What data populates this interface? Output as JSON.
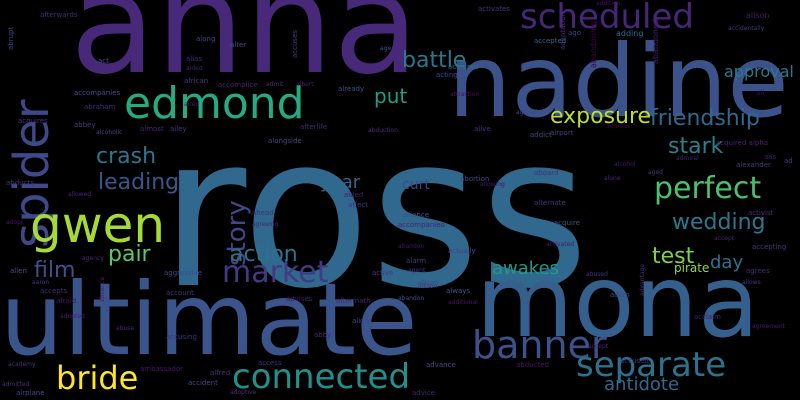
{
  "words": [
    {
      "text": "ross",
      "color": "#30688e"
    },
    {
      "text": "anna",
      "color": "#482979"
    },
    {
      "text": "nadine",
      "color": "#3b528b"
    },
    {
      "text": "mona",
      "color": "#35608d"
    },
    {
      "text": "ultimate",
      "color": "#3a548c"
    },
    {
      "text": "edmond",
      "color": "#25ab82"
    },
    {
      "text": "spider",
      "color": "#3e4989"
    },
    {
      "text": "gwen",
      "color": "#a5db36"
    },
    {
      "text": "scheduled",
      "color": "#482677"
    },
    {
      "text": "connected",
      "color": "#21918c"
    },
    {
      "text": "banner",
      "color": "#3b528b"
    },
    {
      "text": "separate",
      "color": "#2c728e"
    },
    {
      "text": "bride",
      "color": "#fde725"
    },
    {
      "text": "perfect",
      "color": "#4ac16d"
    },
    {
      "text": "market",
      "color": "#443983"
    },
    {
      "text": "friendship",
      "color": "#31688e"
    },
    {
      "text": "exposure",
      "color": "#bddf26"
    },
    {
      "text": "crash",
      "color": "#2a788e"
    },
    {
      "text": "wedding",
      "color": "#2a788e"
    },
    {
      "text": "story",
      "color": "#3e4989"
    },
    {
      "text": "action",
      "color": "#2c728e"
    },
    {
      "text": "leading",
      "color": "#39568c"
    },
    {
      "text": "battle",
      "color": "#2a788e"
    },
    {
      "text": "test",
      "color": "#7ad151"
    },
    {
      "text": "pair",
      "color": "#5ec962"
    },
    {
      "text": "stark",
      "color": "#26828e"
    },
    {
      "text": "film",
      "color": "#3b528b"
    },
    {
      "text": "antidote",
      "color": "#31688e"
    },
    {
      "text": "awakes",
      "color": "#1f9a8a"
    },
    {
      "text": "approval",
      "color": "#2a788e"
    },
    {
      "text": "year",
      "color": "#31688e"
    },
    {
      "text": "put",
      "color": "#1f9e89"
    },
    {
      "text": "day",
      "color": "#2c728e"
    },
    {
      "text": "curt",
      "color": "#3e4a89"
    },
    {
      "text": "pirate",
      "color": "#8fd744"
    },
    {
      "text": "ad",
      "color": "#433e85"
    },
    {
      "text": "addition",
      "color": "#471063"
    },
    {
      "text": "abandoning",
      "color": "#440154"
    },
    {
      "text": "abandoned",
      "color": "#481f70"
    },
    {
      "text": "afterwards",
      "color": "#482475"
    },
    {
      "text": "activates",
      "color": "#46327e"
    },
    {
      "text": "adding",
      "color": "#31688e"
    },
    {
      "text": "adaptation",
      "color": "#482878"
    },
    {
      "text": "alison",
      "color": "#481668"
    },
    {
      "text": "accidentally",
      "color": "#46337f"
    },
    {
      "text": "abrupt",
      "color": "#3f4788"
    },
    {
      "text": "alter",
      "color": "#3b528b"
    },
    {
      "text": "accuses",
      "color": "#433d84"
    },
    {
      "text": "along",
      "color": "#424086"
    },
    {
      "text": "age",
      "color": "#3b528b"
    },
    {
      "text": "ago",
      "color": "#404588"
    },
    {
      "text": "accepted",
      "color": "#34618d"
    },
    {
      "text": "alias",
      "color": "#482576"
    },
    {
      "text": "aided",
      "color": "#482173"
    },
    {
      "text": "act",
      "color": "#3d4e8a"
    },
    {
      "text": "african",
      "color": "#453781"
    },
    {
      "text": "accomplice",
      "color": "#482374"
    },
    {
      "text": "admit",
      "color": "#46327e"
    },
    {
      "text": "albert",
      "color": "#481b6d"
    },
    {
      "text": "acting",
      "color": "#3e4989"
    },
    {
      "text": "acquired",
      "color": "#31688e"
    },
    {
      "text": "accompanies",
      "color": "#3b528b"
    },
    {
      "text": "abraham",
      "color": "#482878"
    },
    {
      "text": "already",
      "color": "#3a548c"
    },
    {
      "text": "attraction",
      "color": "#471365"
    },
    {
      "text": "agreed",
      "color": "#3e4a89"
    },
    {
      "text": "alive",
      "color": "#46307e"
    },
    {
      "text": "ali",
      "color": "#450559"
    },
    {
      "text": "aired",
      "color": "#481a6c"
    },
    {
      "text": "almost",
      "color": "#482677"
    },
    {
      "text": "abbey",
      "color": "#443983"
    },
    {
      "text": "alcoholic",
      "color": "#414487"
    },
    {
      "text": "ailey",
      "color": "#46327e"
    },
    {
      "text": "afterlife",
      "color": "#482475"
    },
    {
      "text": "abduction",
      "color": "#472f7d"
    },
    {
      "text": "addict",
      "color": "#3f4889"
    },
    {
      "text": "address",
      "color": "#440154"
    },
    {
      "text": "airport",
      "color": "#433e85"
    },
    {
      "text": "acquires",
      "color": "#472d7b"
    },
    {
      "text": "acquired alpha",
      "color": "#482071"
    },
    {
      "text": "alongside",
      "color": "#3e4a89"
    },
    {
      "text": "aas",
      "color": "#481c6e"
    },
    {
      "text": "alexander",
      "color": "#453581"
    },
    {
      "text": "admiral",
      "color": "#482374"
    },
    {
      "text": "alcohol",
      "color": "#481467"
    },
    {
      "text": "aged",
      "color": "#46337f"
    },
    {
      "text": "alone",
      "color": "#482677"
    },
    {
      "text": "abortion",
      "color": "#3e4a89"
    },
    {
      "text": "aboard",
      "color": "#46307e"
    },
    {
      "text": "allowing",
      "color": "#481769"
    },
    {
      "text": "activist",
      "color": "#472e7c"
    },
    {
      "text": "alarm",
      "color": "#433e85"
    },
    {
      "text": "agent",
      "color": "#46327e"
    },
    {
      "text": "alison",
      "color": "#3e4a89"
    },
    {
      "text": "allowed",
      "color": "#482878"
    },
    {
      "text": "abducts",
      "color": "#472f7d"
    },
    {
      "text": "aided",
      "color": "#481769"
    },
    {
      "text": "affect",
      "color": "#46337f"
    },
    {
      "text": "alliance",
      "color": "#3d4e8a"
    },
    {
      "text": "accompanied",
      "color": "#482374"
    },
    {
      "text": "alternate",
      "color": "#46307e"
    },
    {
      "text": "acquire",
      "color": "#3b528b"
    },
    {
      "text": "adopt",
      "color": "#481467"
    },
    {
      "text": "ahead",
      "color": "#472d7b"
    },
    {
      "text": "agreeing",
      "color": "#482173"
    },
    {
      "text": "abandon",
      "color": "#471365"
    },
    {
      "text": "actually",
      "color": "#3f4788"
    },
    {
      "text": "activated",
      "color": "#481a6c"
    },
    {
      "text": "accept",
      "color": "#482475"
    },
    {
      "text": "accepting",
      "color": "#46327e"
    },
    {
      "text": "agency",
      "color": "#482878"
    },
    {
      "text": "aggressive",
      "color": "#3e4a89"
    },
    {
      "text": "alien",
      "color": "#3b528b"
    },
    {
      "text": "aaron",
      "color": "#46337f"
    },
    {
      "text": "accepts",
      "color": "#482677"
    },
    {
      "text": "advises",
      "color": "#481c6e"
    },
    {
      "text": "active",
      "color": "#453781"
    },
    {
      "text": "allison",
      "color": "#472f7d"
    },
    {
      "text": "additional",
      "color": "#481769"
    },
    {
      "text": "abused",
      "color": "#46307e"
    },
    {
      "text": "abandon",
      "color": "#3e4a89"
    },
    {
      "text": "always",
      "color": "#3b528b"
    },
    {
      "text": "afraid",
      "color": "#481467"
    },
    {
      "text": "absence",
      "color": "#482173"
    },
    {
      "text": "account",
      "color": "#46327e"
    },
    {
      "text": "aftermath",
      "color": "#482475"
    },
    {
      "text": "adam",
      "color": "#3f4788"
    },
    {
      "text": "advantage",
      "color": "#472d7b"
    },
    {
      "text": "agrees",
      "color": "#482878"
    },
    {
      "text": "allows",
      "color": "#46337f"
    },
    {
      "text": "agreement",
      "color": "#481a6c"
    },
    {
      "text": "adopted",
      "color": "#481c6e"
    },
    {
      "text": "abuse",
      "color": "#482677"
    },
    {
      "text": "accusing",
      "color": "#46307e"
    },
    {
      "text": "align",
      "color": "#3e4a89"
    },
    {
      "text": "abby",
      "color": "#482374"
    },
    {
      "text": "access",
      "color": "#472f7d"
    },
    {
      "text": "advance",
      "color": "#3b528b"
    },
    {
      "text": "ambassador",
      "color": "#481769"
    },
    {
      "text": "alfred",
      "color": "#46327e"
    },
    {
      "text": "accident",
      "color": "#3e4a89"
    },
    {
      "text": "accused",
      "color": "#482878"
    },
    {
      "text": "abducted",
      "color": "#481467"
    },
    {
      "text": "advice",
      "color": "#482475"
    },
    {
      "text": "admitted",
      "color": "#472d7b"
    },
    {
      "text": "airplane",
      "color": "#3f4788"
    },
    {
      "text": "adoptive",
      "color": "#46337f"
    },
    {
      "text": "accept",
      "color": "#482173"
    },
    {
      "text": "acclaim",
      "color": "#481a6c"
    },
    {
      "text": "academy",
      "color": "#46307e"
    }
  ]
}
